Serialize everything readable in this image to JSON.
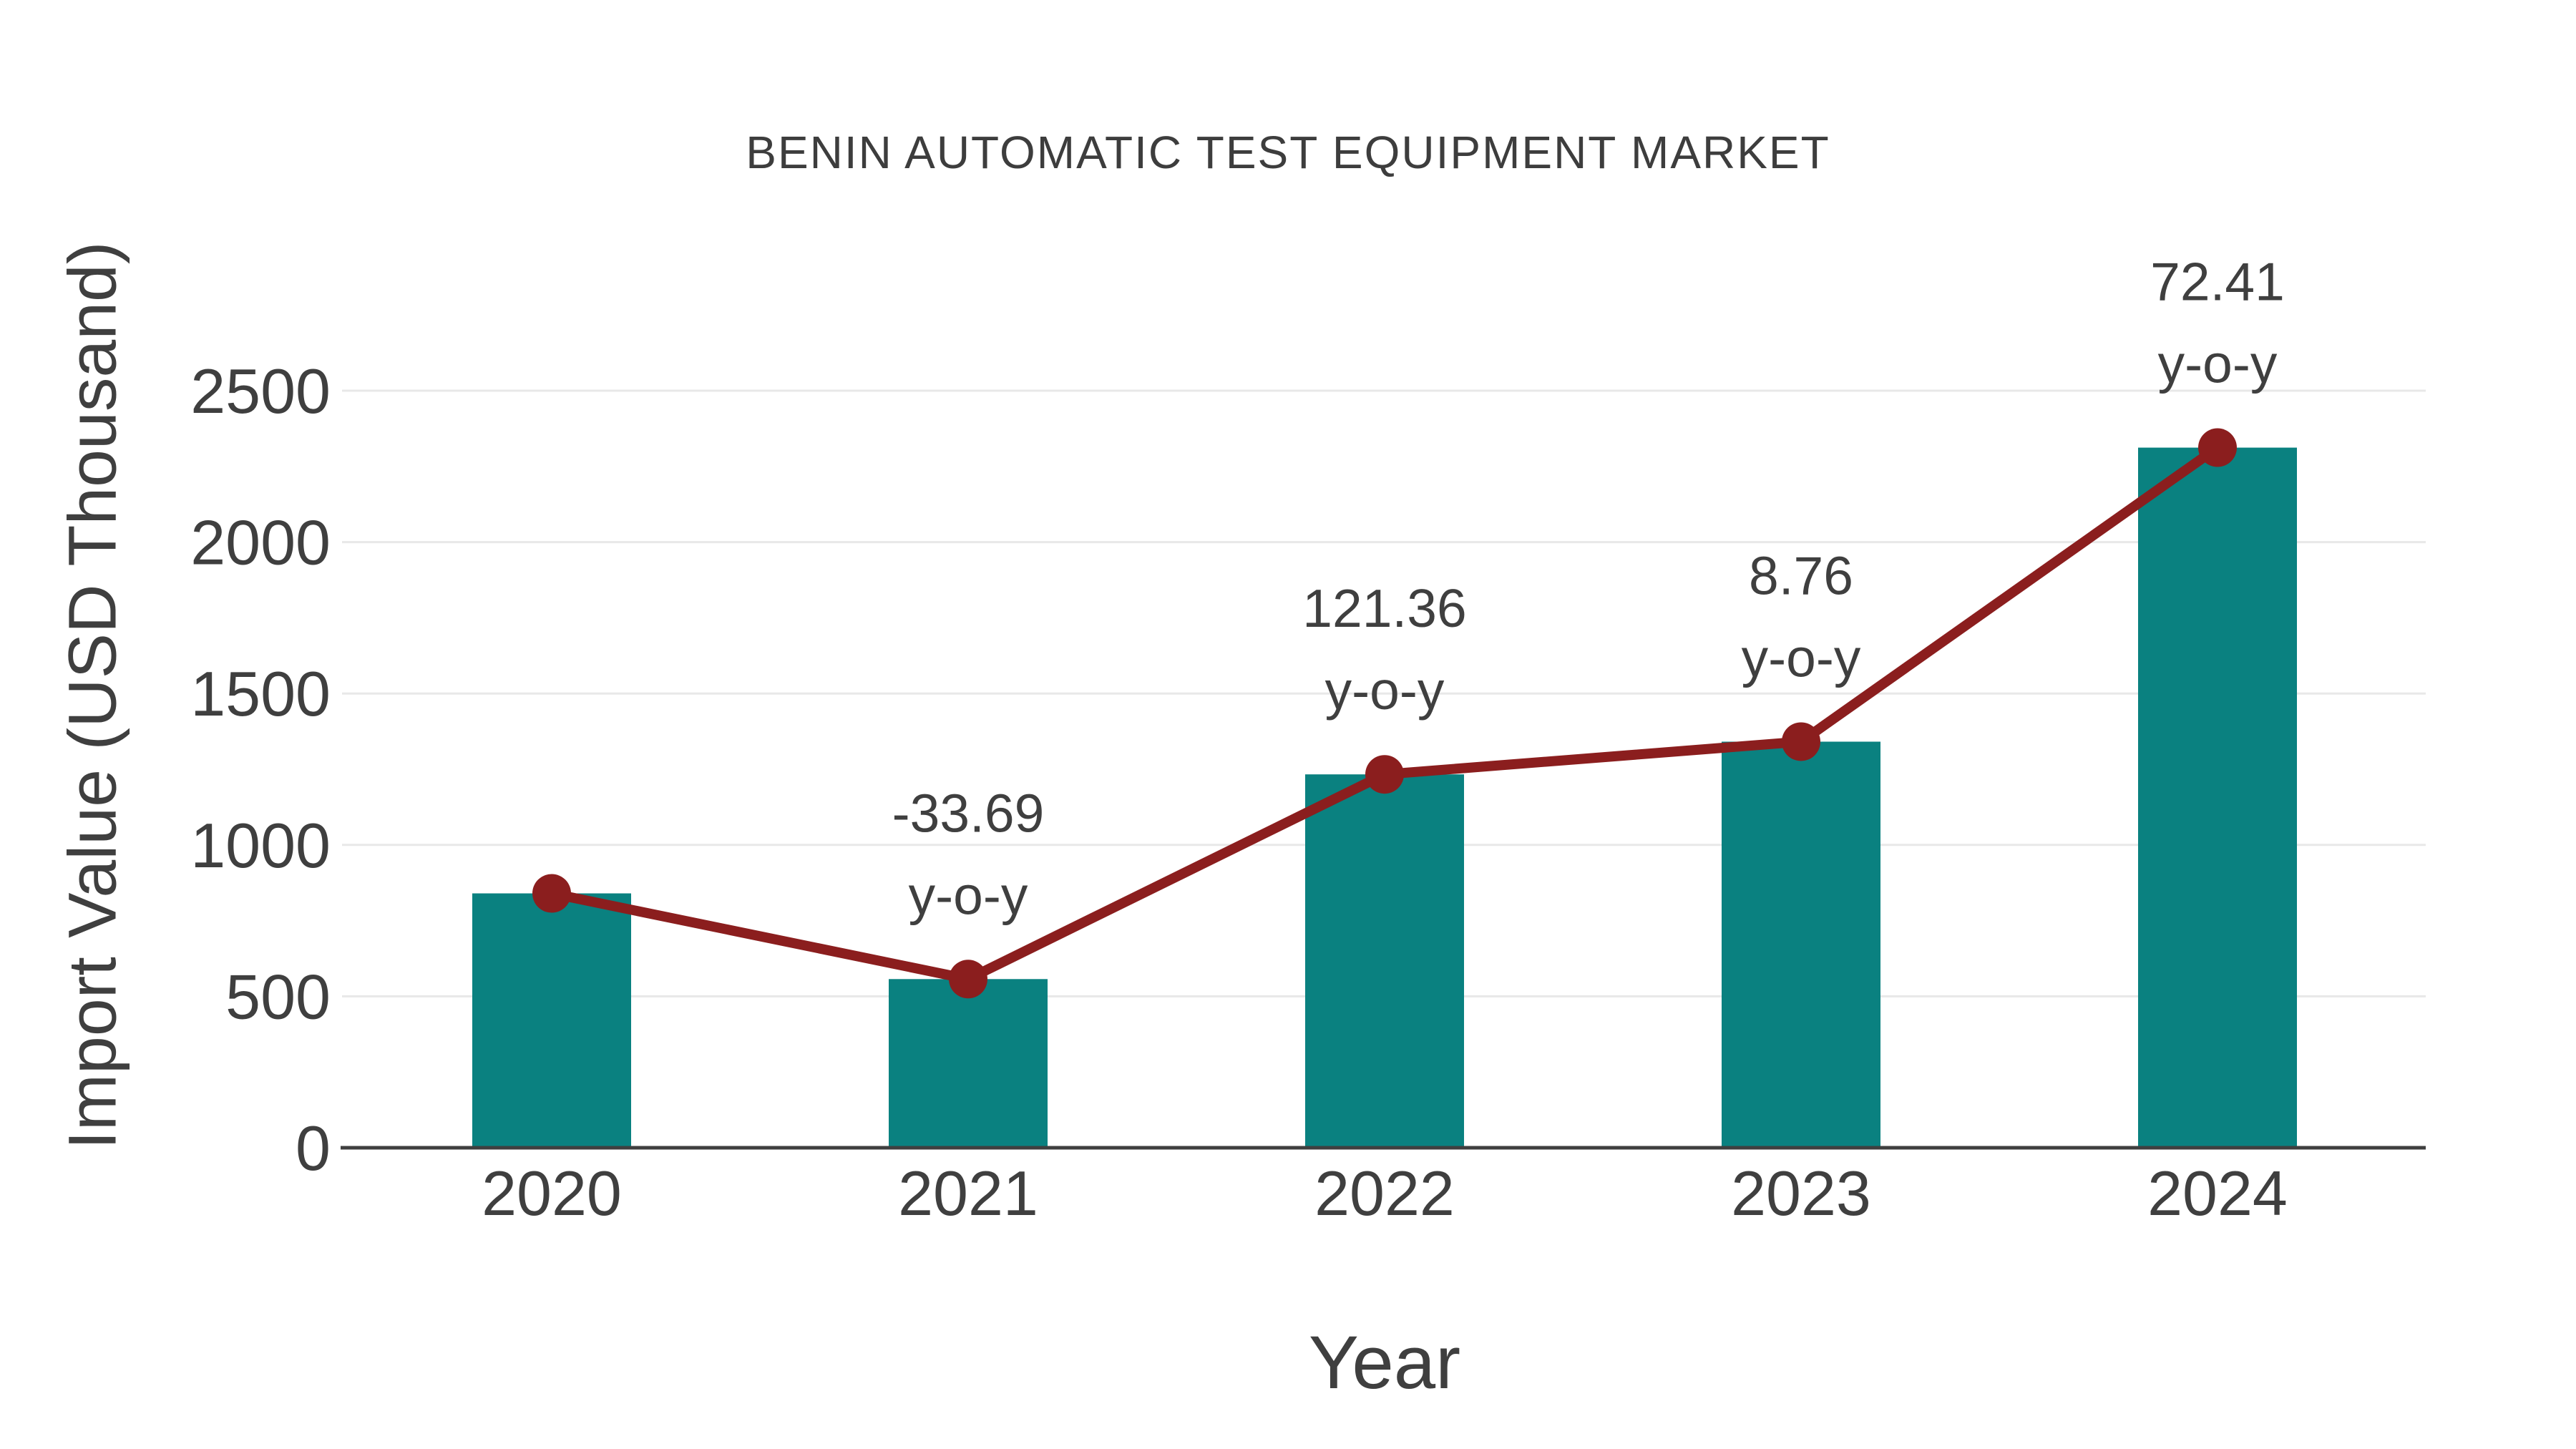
{
  "chart_data": {
    "type": "bar",
    "title": "BENIN AUTOMATIC TEST EQUIPMENT MARKET",
    "xlabel": "Year",
    "ylabel": "Import Value (USD Thousand)",
    "categories": [
      "2020",
      "2021",
      "2022",
      "2023",
      "2024"
    ],
    "series": [
      {
        "name": "Import Value bars",
        "type": "bar",
        "color": "#0a8180",
        "values": [
          840,
          557,
          1233,
          1341,
          2312
        ]
      },
      {
        "name": "Import Value trend",
        "type": "line",
        "color": "#8b1e1e",
        "values": [
          840,
          557,
          1233,
          1341,
          2312
        ]
      }
    ],
    "yoy_annotations": [
      {
        "category": "2021",
        "value_label": "-33.69",
        "suffix_label": "y-o-y"
      },
      {
        "category": "2022",
        "value_label": "121.36",
        "suffix_label": "y-o-y"
      },
      {
        "category": "2023",
        "value_label": "8.76",
        "suffix_label": "y-o-y"
      },
      {
        "category": "2024",
        "value_label": "72.41",
        "suffix_label": "y-o-y"
      }
    ],
    "yticks": [
      0,
      500,
      1000,
      1500,
      2000,
      2500
    ],
    "ylim": [
      0,
      2500
    ],
    "grid": true,
    "legend_position": "none"
  },
  "colors": {
    "bar": "#0a8180",
    "line": "#8b1e1e",
    "grid": "#e8e8e8",
    "axis_line": "#3f3f3f",
    "text": "#3f3f3f",
    "background": "#ffffff"
  }
}
